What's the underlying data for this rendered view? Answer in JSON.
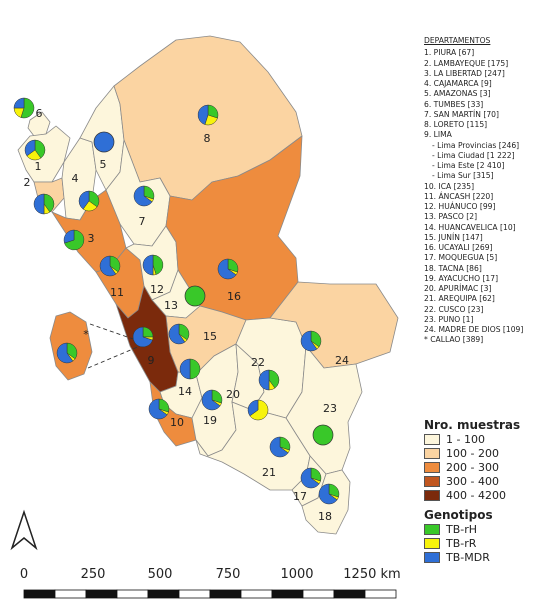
{
  "legend_departments": {
    "title": "DEPARTAMENTOS",
    "items": [
      "1. PIURA [67]",
      "2. LAMBAYEQUE [175]",
      "3. LA LIBERTAD [247]",
      "4. CAJAMARCA [9]",
      "5. AMAZONAS [3]",
      "6. TUMBES [33]",
      "7. SAN MARTÍN [70]",
      "8. LORETO [115]",
      "9. LIMA",
      "- Lima Provincias [246]",
      "- Lima Ciudad [1 222]",
      "- Lima Este [2 410]",
      "- Lima Sur [315]",
      "10. ICA [235]",
      "11. ÁNCASH [220]",
      "12. HUÁNUCO [99]",
      "13. PASCO [2]",
      "14. HUANCAVELICA [10]",
      "15. JUNÍN [147]",
      "16. UCAYALI [269]",
      "17. MOQUEGUA [5]",
      "18. TACNA [86]",
      "19. AYACUCHO [17]",
      "20. APURÍMAC [3]",
      "21. AREQUIPA [62]",
      "22. CUSCO [23]",
      "23. PUNO [1]",
      "24. MADRE DE DIOS [109]",
      "* CALLAO [389]"
    ]
  },
  "legend_counts": {
    "title": "Nro. muestras",
    "items": [
      {
        "label": "1 - 100",
        "color": "#fdf6dc"
      },
      {
        "label": "100 - 200",
        "color": "#fbd4a2"
      },
      {
        "label": "200 - 300",
        "color": "#ee8c3e"
      },
      {
        "label": "300 - 400",
        "color": "#c1561f"
      },
      {
        "label": "400 - 4200",
        "color": "#7b2a0c"
      }
    ]
  },
  "legend_genotypes": {
    "title": "Genotipos",
    "items": [
      {
        "label": "TB-rH",
        "color": "#39c829"
      },
      {
        "label": "TB-rR",
        "color": "#f7f30c"
      },
      {
        "label": "TB-MDR",
        "color": "#2f6fd6"
      }
    ]
  },
  "scalebar": {
    "ticks": [
      "0",
      "250",
      "500",
      "750",
      "1000",
      "1250 km"
    ]
  },
  "map_labels": [
    "1",
    "2",
    "3",
    "4",
    "5",
    "6",
    "7",
    "8",
    "9",
    "10",
    "11",
    "12",
    "13",
    "14",
    "15",
    "16",
    "17",
    "18",
    "19",
    "20",
    "21",
    "22",
    "23",
    "24",
    "*"
  ],
  "pies": [
    {
      "label": "6",
      "shares": [
        0.55,
        0.2,
        0.25
      ]
    },
    {
      "label": "1",
      "shares": [
        0.4,
        0.25,
        0.35
      ]
    },
    {
      "label": "2",
      "shares": [
        0.4,
        0.1,
        0.5
      ]
    },
    {
      "label": "4",
      "shares": [
        0.35,
        0.25,
        0.4
      ]
    },
    {
      "label": "5",
      "shares": [
        0,
        0,
        1
      ]
    },
    {
      "label": "8",
      "shares": [
        0.3,
        0.25,
        0.45
      ]
    },
    {
      "label": "7",
      "shares": [
        0.3,
        0.05,
        0.65
      ]
    },
    {
      "label": "3",
      "shares": [
        0.7,
        0,
        0.3
      ]
    },
    {
      "label": "11",
      "shares": [
        0.35,
        0.05,
        0.6
      ]
    },
    {
      "label": "12",
      "shares": [
        0.45,
        0.05,
        0.5
      ]
    },
    {
      "label": "13",
      "shares": [
        1,
        0,
        0
      ]
    },
    {
      "label": "16",
      "shares": [
        0.3,
        0.05,
        0.65
      ]
    },
    {
      "label": "9",
      "shares": [
        0.25,
        0.05,
        0.7
      ]
    },
    {
      "label": "*",
      "shares": [
        0.35,
        0.05,
        0.6
      ]
    },
    {
      "label": "15",
      "shares": [
        0.35,
        0.05,
        0.6
      ]
    },
    {
      "label": "24",
      "shares": [
        0.35,
        0.05,
        0.6
      ]
    },
    {
      "label": "22",
      "shares": [
        0.4,
        0.1,
        0.5
      ]
    },
    {
      "label": "14",
      "shares": [
        0.5,
        0,
        0.5
      ]
    },
    {
      "label": "19",
      "shares": [
        0.3,
        0.05,
        0.65
      ]
    },
    {
      "label": "20",
      "shares": [
        0,
        0.65,
        0.35
      ]
    },
    {
      "label": "10",
      "shares": [
        0.3,
        0.05,
        0.65
      ]
    },
    {
      "label": "21",
      "shares": [
        0.3,
        0.05,
        0.65
      ]
    },
    {
      "label": "23",
      "shares": [
        1,
        0,
        0
      ]
    },
    {
      "label": "17",
      "shares": [
        0.3,
        0.05,
        0.65
      ]
    },
    {
      "label": "18",
      "shares": [
        0.3,
        0.05,
        0.65
      ]
    }
  ]
}
